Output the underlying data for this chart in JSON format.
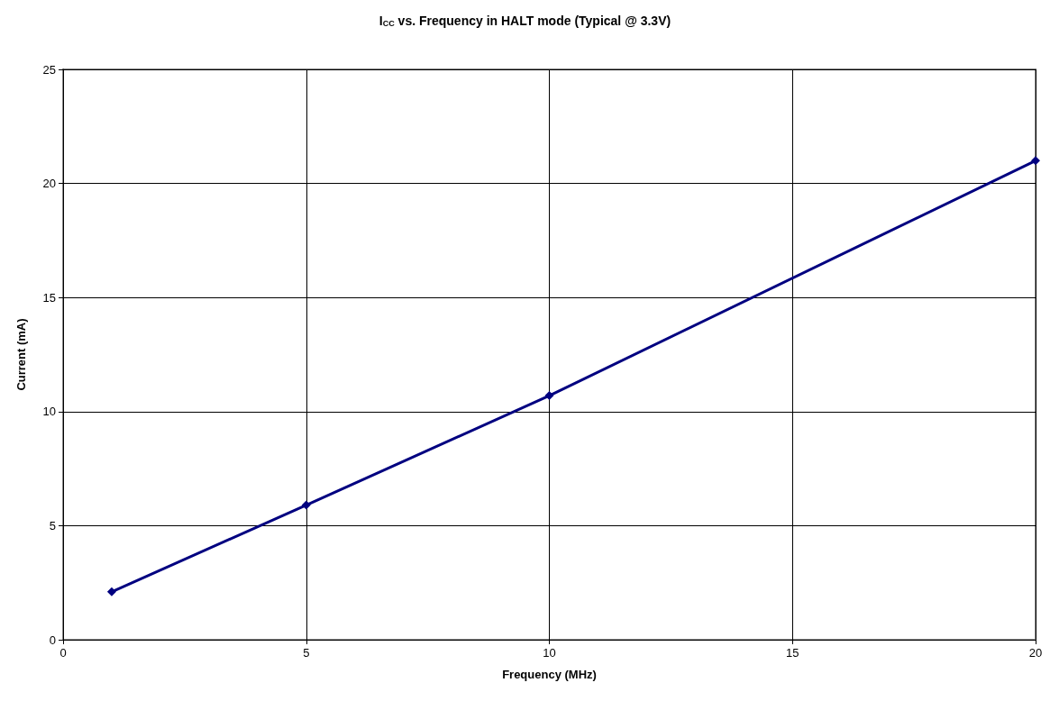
{
  "chart_data": {
    "type": "line",
    "title": "I$_{CC}$ vs. Frequency in HALT mode (Typical @ 3.3V)",
    "xlabel": "Frequency (MHz)",
    "ylabel": "Current (mA)",
    "x": [
      1,
      5,
      10,
      20
    ],
    "series": [
      {
        "color": "#000080",
        "values": [
          2.1,
          5.9,
          10.7,
          21.0
        ]
      }
    ],
    "xlim": [
      0,
      20
    ],
    "xticks": [
      0,
      5,
      10,
      15,
      20
    ],
    "ylim": [
      0,
      25
    ],
    "yticks": [
      0,
      5,
      10,
      15,
      20,
      25
    ],
    "grid": true,
    "marker": "diamond",
    "line_style": "solid"
  }
}
